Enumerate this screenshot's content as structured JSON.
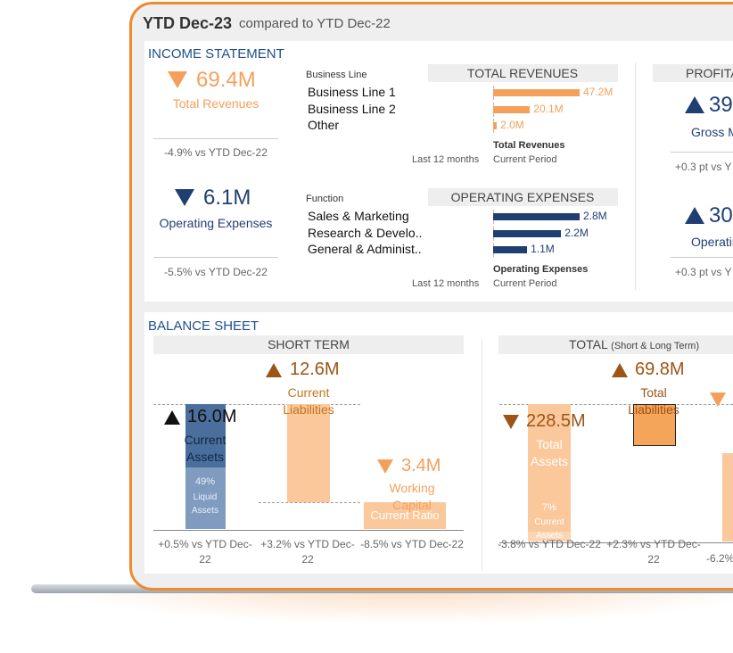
{
  "header": {
    "title": "YTD Dec-23",
    "subtitle": "compared to YTD Dec-22"
  },
  "income_statement": {
    "title": "INCOME STATEMENT",
    "kpis": [
      {
        "value": "69.4M",
        "label": "Total Revenues",
        "change": "-4.9% vs YTD Dec-22"
      },
      {
        "value": "6.1M",
        "label": "Operating Expenses",
        "change": "-5.5% vs YTD Dec-22"
      }
    ],
    "revenues": {
      "dimension": "Business Line",
      "title": "TOTAL REVENUES",
      "categories": [
        "Business Line 1",
        "Business Line 2",
        "Other"
      ],
      "values": [
        47.2,
        20.1,
        2.0
      ],
      "value_labels": [
        "47.2M",
        "20.1M",
        "2.0M"
      ],
      "measure": "Total Revenues",
      "period": "Current Period",
      "trend": "Last 12 months"
    },
    "expenses": {
      "dimension": "Function",
      "title": "OPERATING EXPENSES",
      "categories": [
        "Sales & Marketing",
        "Research & Develo..",
        "General & Administ.."
      ],
      "values": [
        2.8,
        2.2,
        1.1
      ],
      "value_labels": [
        "2.8M",
        "2.2M",
        "1.1M"
      ],
      "measure": "Operating Expenses",
      "period": "Current Period",
      "trend": "Last 12 months"
    },
    "profitability": {
      "title": "PROFITA",
      "kpis": [
        {
          "value": "39",
          "label": "Gross M",
          "change": "+0.3 pt vs Y"
        },
        {
          "value": "30",
          "label": "Operating",
          "change": "+0.3 pt vs Y"
        }
      ]
    }
  },
  "balance_sheet": {
    "title": "BALANCE SHEET",
    "short_term": {
      "title": "SHORT TERM",
      "assets": {
        "value": 16.0,
        "value_label": "16.0M",
        "label": "Current Assets",
        "change": "+0.5% vs YTD Dec-22",
        "share": 49,
        "share_label": "49%",
        "share_name": "Liquid Assets"
      },
      "liabilities": {
        "value": 12.6,
        "value_label": "12.6M",
        "label": "Current Liabilities",
        "change": "+3.2% vs YTD Dec-22"
      },
      "net": {
        "value": 3.4,
        "value_label": "3.4M",
        "label": "Working Capital",
        "change": "-8.5% vs YTD Dec-22",
        "ratio_label": "Current Ratio"
      }
    },
    "total": {
      "title": "TOTAL",
      "subtitle": "(Short & Long Term)",
      "assets": {
        "value": 228.5,
        "value_label": "228.5M",
        "label": "Total Assets",
        "change": "-3.8% vs YTD Dec-22",
        "share": 7,
        "share_label": "7%",
        "share_name": "Current Assets"
      },
      "liabilities": {
        "value": 69.8,
        "value_label": "69.8M",
        "label": "Total Liabilities",
        "change": "+2.3% vs YTD Dec-22"
      },
      "net": {
        "change": "-6.2%"
      }
    }
  }
}
